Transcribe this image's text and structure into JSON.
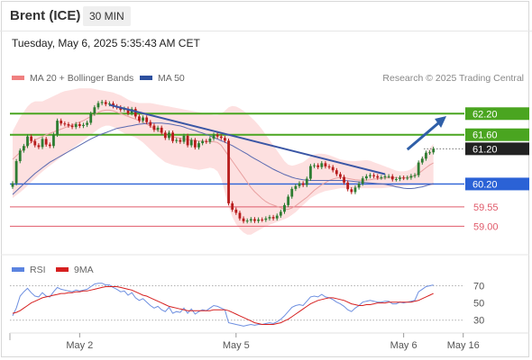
{
  "header": {
    "instrument": "Brent (ICE)",
    "timeframe": "30 MIN"
  },
  "timestamp": "Tuesday, May 6, 2025 5:35:43 AM CET",
  "legend": {
    "ma20_bb": "MA 20 + Bollinger Bands",
    "ma50": "MA 50",
    "credit": "Research © 2025 Trading Central",
    "rsi": "RSI",
    "rsi_ma": "9MA"
  },
  "colors": {
    "bollinger_fill": "#fde0e0",
    "ma20": "#e8a0a0",
    "ma50": "#5a6ab0",
    "trendline": "#3a56a5",
    "resistance": "#4aa520",
    "pivot": "#2b62d6",
    "support": "#e05a6a",
    "candle_up": "#2e7d32",
    "candle_down": "#b71c1c",
    "rsi_line": "#6d8fe0",
    "rsi_ma_line": "#d62020",
    "arrow": "#2f5fa8"
  },
  "chart_data": [
    {
      "type": "candlestick",
      "title": "Brent (ICE) 30 MIN",
      "ylim": [
        58.65,
        63.0
      ],
      "x_ticks": [
        "May 2",
        "May 5",
        "May 6",
        "May 16"
      ],
      "levels": [
        {
          "value": 62.2,
          "label": "62.20",
          "kind": "resistance",
          "badge": true
        },
        {
          "value": 61.6,
          "label": "61.60",
          "kind": "resistance",
          "badge": true
        },
        {
          "value": 61.2,
          "label": "61.20",
          "kind": "last",
          "badge": true
        },
        {
          "value": 60.2,
          "label": "60.20",
          "kind": "pivot",
          "badge": true
        },
        {
          "value": 59.55,
          "label": "59.55",
          "kind": "support",
          "badge": false
        },
        {
          "value": 59.0,
          "label": "59.00",
          "kind": "support",
          "badge": false
        }
      ],
      "close": [
        60.22,
        60.85,
        61.15,
        61.28,
        61.55,
        61.42,
        61.3,
        61.25,
        61.48,
        61.32,
        61.28,
        61.6,
        62.0,
        61.92,
        61.9,
        61.86,
        61.82,
        61.9,
        61.85,
        61.88,
        61.94,
        62.2,
        62.38,
        62.5,
        62.53,
        62.47,
        62.49,
        62.41,
        62.38,
        62.31,
        62.34,
        62.21,
        62.33,
        62.12,
        62.0,
        62.09,
        61.96,
        61.86,
        61.74,
        61.8,
        61.66,
        61.51,
        61.66,
        61.42,
        61.45,
        61.4,
        61.57,
        61.3,
        61.45,
        61.24,
        61.36,
        61.42,
        61.4,
        61.49,
        61.6,
        61.55,
        61.51,
        61.43,
        59.65,
        59.47,
        59.38,
        59.22,
        59.14,
        59.16,
        59.2,
        59.15,
        59.19,
        59.18,
        59.22,
        59.26,
        59.22,
        59.3,
        59.41,
        59.6,
        59.84,
        60.06,
        60.14,
        60.22,
        60.17,
        60.35,
        60.71,
        60.73,
        60.68,
        60.79,
        60.7,
        60.68,
        60.59,
        60.48,
        60.4,
        60.24,
        60.05,
        59.97,
        60.1,
        60.21,
        60.36,
        60.42,
        60.45,
        60.42,
        60.38,
        60.39,
        60.42,
        60.42,
        60.33,
        60.34,
        60.38,
        60.37,
        60.38,
        60.43,
        60.45,
        60.81,
        60.92,
        61.09,
        61.1,
        61.2
      ],
      "ma20": [
        60.9,
        61.0,
        61.1,
        61.2,
        61.3,
        61.38,
        61.45,
        61.5,
        61.55,
        61.6,
        61.64,
        61.68,
        61.72,
        61.76,
        61.8,
        61.84,
        61.88,
        61.92,
        61.96,
        62.0,
        62.06,
        62.12,
        62.18,
        62.24,
        62.28,
        62.3,
        62.3,
        62.28,
        62.24,
        62.2,
        62.16,
        62.12,
        62.08,
        62.04,
        62.0,
        61.95,
        61.9,
        61.84,
        61.78,
        61.72,
        61.66,
        61.6,
        61.56,
        61.54,
        61.52,
        61.5,
        61.48,
        61.46,
        61.45,
        61.44,
        61.42,
        61.42,
        61.41,
        61.4,
        61.4,
        61.38,
        61.3,
        61.15,
        61.0,
        60.85,
        60.7,
        60.55,
        60.4,
        60.25,
        60.1,
        59.98,
        59.88,
        59.78,
        59.7,
        59.64,
        59.6,
        59.56,
        59.52,
        59.48,
        59.48,
        59.52,
        59.58,
        59.66,
        59.74,
        59.82,
        59.92,
        60.02,
        60.1,
        60.18,
        60.24,
        60.3,
        60.34,
        60.37,
        60.38,
        60.38,
        60.36,
        60.34,
        60.32,
        60.31,
        60.3,
        60.31,
        60.32,
        60.34,
        60.35,
        60.36,
        60.37,
        60.38,
        60.38,
        60.38,
        60.38,
        60.38,
        60.38,
        60.4,
        60.44,
        60.5,
        60.58,
        60.66,
        60.74,
        60.8
      ],
      "boll_upper": [
        61.7,
        61.9,
        62.1,
        62.25,
        62.4,
        62.5,
        62.55,
        62.55,
        62.55,
        62.6,
        62.65,
        62.7,
        62.75,
        62.8,
        62.84,
        62.86,
        62.88,
        62.9,
        62.92,
        62.92,
        62.92,
        62.92,
        62.9,
        62.88,
        62.86,
        62.84,
        62.82,
        62.8,
        62.76,
        62.72,
        62.66,
        62.6,
        62.55,
        62.52,
        62.5,
        62.5,
        62.5,
        62.5,
        62.48,
        62.46,
        62.44,
        62.42,
        62.4,
        62.38,
        62.36,
        62.34,
        62.32,
        62.3,
        62.28,
        62.26,
        62.24,
        62.22,
        62.2,
        62.18,
        62.16,
        62.16,
        62.2,
        62.28,
        62.38,
        62.42,
        62.4,
        62.35,
        62.28,
        62.2,
        62.1,
        62.0,
        61.88,
        61.75,
        61.6,
        61.45,
        61.3,
        61.15,
        61.0,
        60.85,
        60.75,
        60.72,
        60.74,
        60.78,
        60.82,
        60.9,
        60.98,
        61.04,
        61.06,
        61.06,
        61.05,
        61.02,
        60.98,
        60.94,
        60.9,
        60.88,
        60.86,
        60.85,
        60.85,
        60.86,
        60.87,
        60.88,
        60.86,
        60.82,
        60.78,
        60.74,
        60.7,
        60.66,
        60.62,
        60.58,
        60.56,
        60.56,
        60.58,
        60.62,
        60.7,
        60.82,
        60.96,
        61.1,
        61.22,
        61.34
      ],
      "boll_lower": [
        59.8,
        59.88,
        59.96,
        60.05,
        60.15,
        60.26,
        60.36,
        60.46,
        60.55,
        60.64,
        60.72,
        60.8,
        60.88,
        60.96,
        61.04,
        61.12,
        61.2,
        61.28,
        61.36,
        61.44,
        61.52,
        61.6,
        61.68,
        61.76,
        61.82,
        61.86,
        61.86,
        61.82,
        61.76,
        61.7,
        61.64,
        61.6,
        61.56,
        61.52,
        61.46,
        61.38,
        61.28,
        61.18,
        61.08,
        60.98,
        60.9,
        60.82,
        60.78,
        60.74,
        60.72,
        60.7,
        60.68,
        60.66,
        60.64,
        60.62,
        60.6,
        60.62,
        60.64,
        60.66,
        60.64,
        60.56,
        60.36,
        59.96,
        59.56,
        59.26,
        59.06,
        58.92,
        58.82,
        58.76,
        58.76,
        58.82,
        58.88,
        58.94,
        58.99,
        59.04,
        59.08,
        59.12,
        59.16,
        59.2,
        59.25,
        59.32,
        59.4,
        59.5,
        59.6,
        59.7,
        59.8,
        59.86,
        59.92,
        59.96,
        60.0,
        60.02,
        60.04,
        60.06,
        60.08,
        60.08,
        60.08,
        60.08,
        60.08,
        60.08,
        60.08,
        60.08,
        60.08,
        60.08,
        60.08,
        60.08,
        60.09,
        60.1,
        60.11,
        60.12,
        60.13,
        60.14,
        60.15,
        60.16,
        60.16,
        60.16,
        60.16,
        60.16,
        60.16,
        60.16
      ],
      "ma50": [
        59.9,
        60.0,
        60.1,
        60.2,
        60.3,
        60.4,
        60.5,
        60.58,
        60.66,
        60.74,
        60.82,
        60.88,
        60.94,
        61.0,
        61.06,
        61.12,
        61.18,
        61.24,
        61.3,
        61.36,
        61.42,
        61.48,
        61.53,
        61.58,
        61.62,
        61.66,
        61.7,
        61.74,
        61.78,
        61.8,
        61.82,
        61.84,
        61.86,
        61.88,
        61.9,
        61.91,
        61.92,
        61.93,
        61.93,
        61.93,
        61.93,
        61.92,
        61.91,
        61.89,
        61.87,
        61.85,
        61.82,
        61.78,
        61.75,
        61.72,
        61.68,
        61.65,
        61.61,
        61.57,
        61.52,
        61.48,
        61.43,
        61.39,
        61.34,
        61.29,
        61.23,
        61.17,
        61.11,
        61.05,
        60.98,
        60.92,
        60.86,
        60.8,
        60.74,
        60.68,
        60.62,
        60.57,
        60.52,
        60.47,
        60.43,
        60.39,
        60.36,
        60.34,
        60.32,
        60.31,
        60.3,
        60.3,
        60.3,
        60.3,
        60.3,
        60.3,
        60.3,
        60.3,
        60.3,
        60.3,
        60.29,
        60.28,
        60.27,
        60.26,
        60.25,
        60.24,
        60.23,
        60.22,
        60.21,
        60.2,
        60.19,
        60.17,
        60.15,
        60.12,
        60.1,
        60.08,
        60.07,
        60.07,
        60.08,
        60.1,
        60.12,
        60.15,
        60.18,
        60.21
      ],
      "trendline": {
        "from": {
          "x": 26,
          "y": 62.45
        },
        "to": {
          "x": 100,
          "y": 60.48
        }
      },
      "projection": {
        "from": {
          "x": 106,
          "y": 61.18
        },
        "to": {
          "x": 116,
          "y": 62.08
        }
      }
    },
    {
      "type": "line",
      "title": "RSI",
      "ylim": [
        15,
        80
      ],
      "y_ticks": [
        70,
        50,
        30
      ],
      "series": [
        {
          "name": "RSI",
          "values": [
            35,
            44,
            58,
            63,
            67,
            62,
            58,
            57,
            62,
            58,
            57,
            63,
            68,
            66,
            65,
            64,
            63,
            65,
            64,
            65,
            66,
            69,
            72,
            73,
            73,
            71,
            71,
            68,
            66,
            63,
            64,
            59,
            62,
            56,
            53,
            55,
            51,
            47,
            44,
            46,
            42,
            40,
            45,
            38,
            40,
            39,
            44,
            38,
            43,
            37,
            40,
            42,
            41,
            44,
            47,
            46,
            44,
            42,
            27,
            26,
            25,
            24,
            23,
            24,
            25,
            24,
            25,
            25,
            26,
            27,
            26,
            28,
            31,
            35,
            40,
            45,
            47,
            48,
            47,
            52,
            57,
            58,
            57,
            60,
            57,
            56,
            54,
            51,
            49,
            46,
            42,
            40,
            44,
            47,
            51,
            52,
            53,
            52,
            51,
            51,
            52,
            52,
            49,
            49,
            51,
            50,
            51,
            52,
            53,
            63,
            66,
            69,
            70,
            71
          ]
        },
        {
          "name": "9MA",
          "values": [
            38,
            39,
            41,
            44,
            47,
            50,
            52,
            54,
            56,
            57,
            58,
            59,
            60,
            61,
            61,
            62,
            62,
            63,
            63,
            64,
            64,
            65,
            66,
            67,
            68,
            69,
            69,
            69,
            69,
            68,
            67,
            66,
            65,
            63,
            61,
            59,
            58,
            56,
            54,
            52,
            50,
            48,
            46,
            45,
            44,
            43,
            42,
            41,
            41,
            41,
            41,
            41,
            41,
            41,
            42,
            42,
            42,
            42,
            41,
            39,
            37,
            35,
            33,
            31,
            29,
            27,
            26,
            25,
            25,
            25,
            25,
            26,
            27,
            29,
            31,
            34,
            37,
            40,
            43,
            46,
            49,
            51,
            53,
            54,
            55,
            56,
            56,
            55,
            54,
            53,
            51,
            49,
            48,
            47,
            47,
            48,
            48,
            49,
            50,
            50,
            50,
            51,
            51,
            51,
            51,
            51,
            51,
            51,
            52,
            53,
            55,
            57,
            59,
            61
          ]
        }
      ],
      "levels": [
        70,
        30
      ]
    }
  ]
}
